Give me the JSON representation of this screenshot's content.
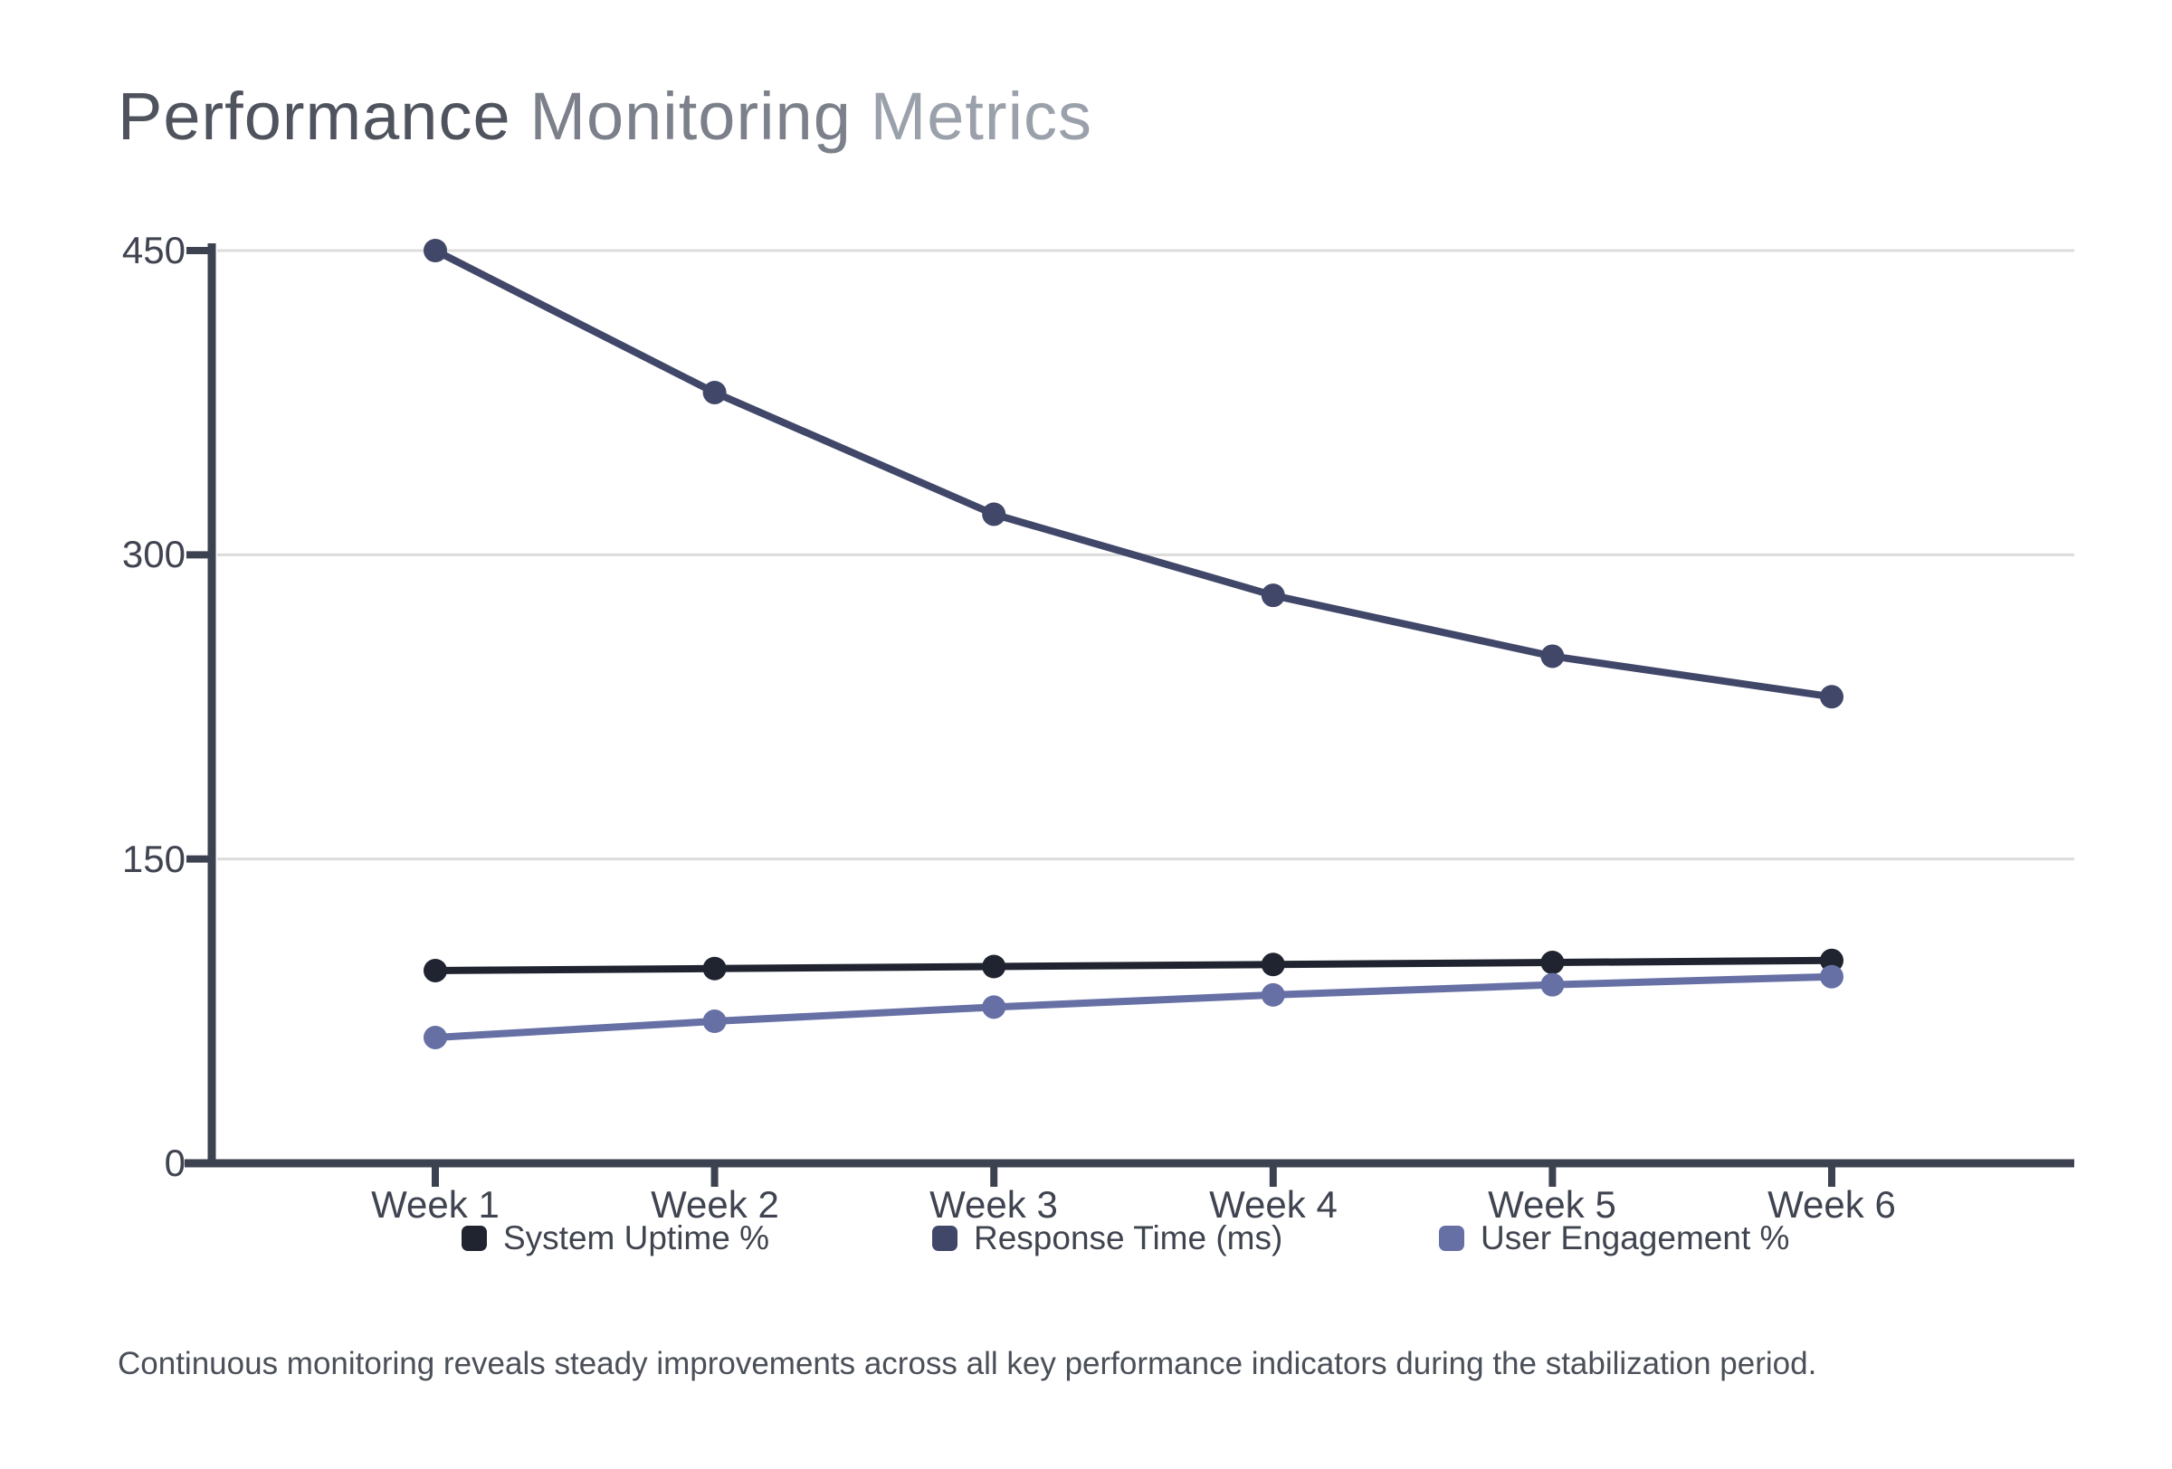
{
  "page": {
    "title_parts": {
      "p1": "Performance",
      "p2": "Monitoring",
      "p3": "Metrics"
    },
    "caption": "Continuous monitoring reveals steady improvements across all key performance indicators during the stabilization period."
  },
  "chart_data": {
    "type": "line",
    "title": "Performance Monitoring Metrics",
    "categories": [
      "Week 1",
      "Week 2",
      "Week 3",
      "Week 4",
      "Week 5",
      "Week 6"
    ],
    "series": [
      {
        "name": "System Uptime %",
        "color": "#1f2430",
        "values": [
          95,
          96,
          97,
          98,
          99,
          100
        ]
      },
      {
        "name": "Response Time (ms)",
        "color": "#414769",
        "values": [
          450,
          380,
          320,
          280,
          250,
          230
        ]
      },
      {
        "name": "User Engagement %",
        "color": "#6670a5",
        "values": [
          62,
          70,
          77,
          83,
          88,
          92
        ]
      }
    ],
    "yticks": [
      0,
      150,
      300,
      450
    ],
    "ylim": [
      0,
      450
    ],
    "grid": true,
    "legend_position": "bottom",
    "axis_color": "#3d4250",
    "grid_color": "#dcdcdc",
    "marker_radius": 13,
    "line_width": 8
  }
}
